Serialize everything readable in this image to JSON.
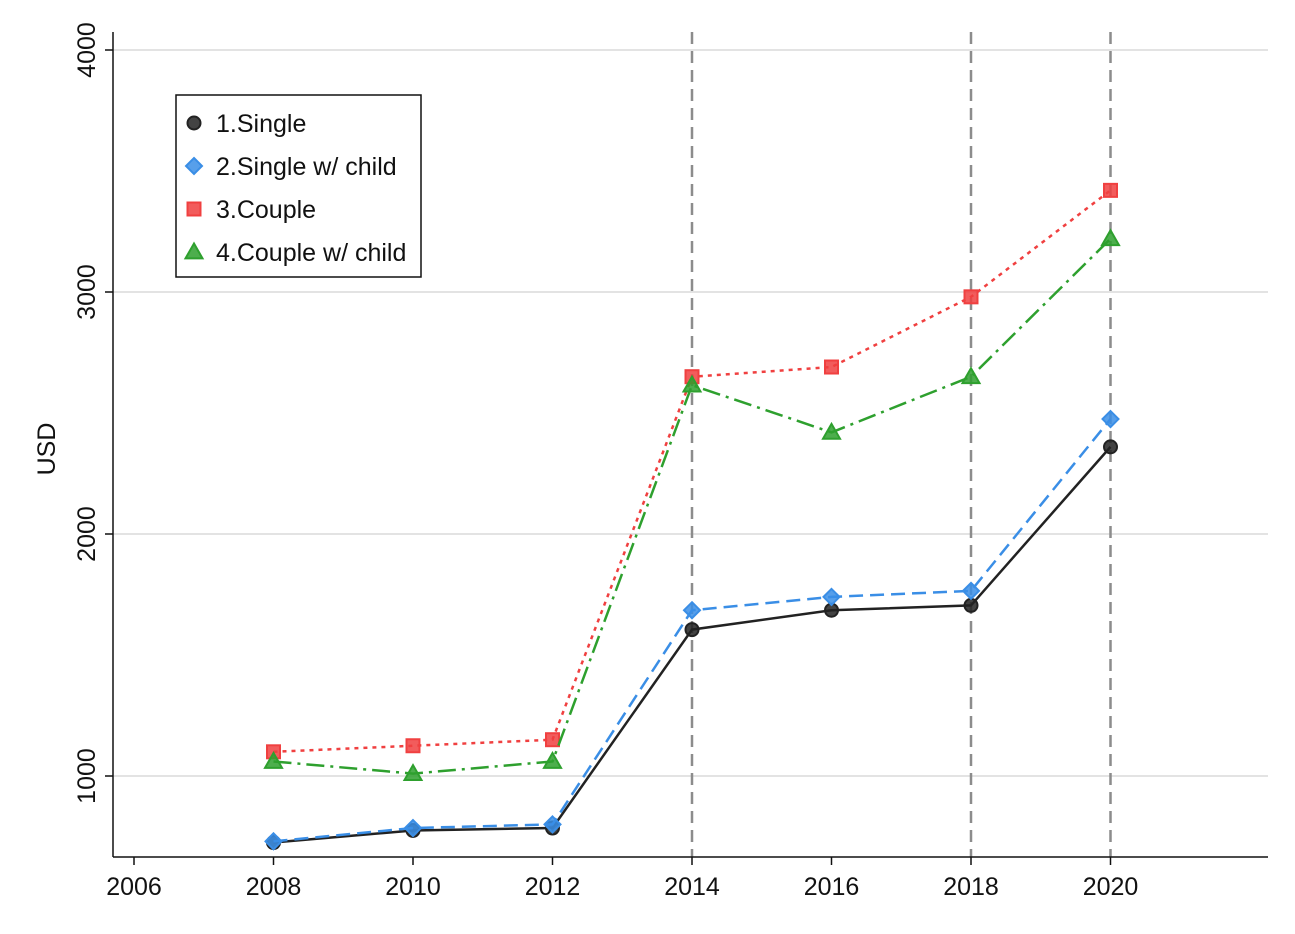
{
  "chart_data": {
    "type": "line",
    "title": "",
    "xlabel": "",
    "ylabel": "USD",
    "x": [
      2008,
      2010,
      2012,
      2014,
      2016,
      2018,
      2020
    ],
    "xlim": [
      2006,
      2022
    ],
    "ylim": [
      670,
      4000
    ],
    "x_ticks": [
      2006,
      2008,
      2010,
      2012,
      2014,
      2016,
      2018,
      2020
    ],
    "y_ticks": [
      1000,
      2000,
      3000,
      4000
    ],
    "grid": "horizontal",
    "vertical_reference_lines": [
      2014,
      2018,
      2020
    ],
    "legend_position": "top-left",
    "series": [
      {
        "name": "1.Single",
        "color": "#222222",
        "marker": "circle",
        "dash": "solid",
        "values": [
          725,
          775,
          785,
          1605,
          1685,
          1705,
          2360
        ]
      },
      {
        "name": "2.Single w/ child",
        "color": "#3a8ee6",
        "marker": "diamond",
        "dash": "dashed",
        "values": [
          730,
          785,
          800,
          1685,
          1740,
          1765,
          2475
        ]
      },
      {
        "name": "3.Couple",
        "color": "#f04040",
        "marker": "square",
        "dash": "dotted",
        "values": [
          1100,
          1125,
          1150,
          2650,
          2690,
          2980,
          3420
        ]
      },
      {
        "name": "4.Couple w/ child",
        "color": "#2ea02e",
        "marker": "triangle",
        "dash": "dashdot",
        "values": [
          1060,
          1010,
          1060,
          2615,
          2420,
          2650,
          3220
        ]
      }
    ]
  }
}
